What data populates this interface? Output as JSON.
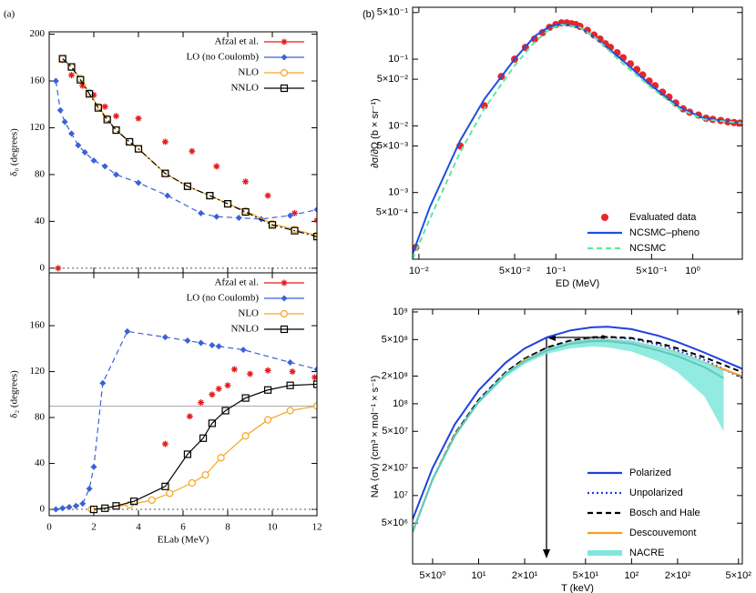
{
  "chart_data": [
    {
      "type": "line",
      "panel_label": "(a)",
      "ylabel": "δ₀ (degrees)",
      "xlim": [
        0,
        12
      ],
      "ylim": [
        -4,
        202
      ],
      "yticks": [
        0,
        40,
        80,
        120,
        160,
        200
      ],
      "legend": "upper right",
      "hlines": [
        {
          "value": 0,
          "style": "dotted",
          "color": "#555"
        }
      ],
      "series": [
        {
          "name": "Afzal et al.",
          "color": "#e41a1c",
          "marker": "star",
          "style": "none",
          "x": [
            0.4,
            0.6,
            1.0,
            1.5,
            2.0,
            2.5,
            3.0,
            4.0,
            5.2,
            6.4,
            7.5,
            8.8,
            9.8,
            11.0,
            12.0
          ],
          "values": [
            0,
            178,
            165,
            156,
            148,
            138,
            130,
            128,
            108,
            100,
            87,
            74,
            62,
            47,
            41
          ]
        },
        {
          "name": "LO (no Coulomb)",
          "color": "#3a62d8",
          "marker": "diamond",
          "style": "dashed",
          "x": [
            0.3,
            0.5,
            0.7,
            1.0,
            1.3,
            1.6,
            2.0,
            2.5,
            3.0,
            4.0,
            5.3,
            6.8,
            7.5,
            8.5,
            9.5,
            10.8,
            12.0
          ],
          "values": [
            160,
            135,
            125,
            115,
            105,
            99,
            92,
            87,
            80,
            73,
            62,
            47,
            44,
            43,
            42,
            45,
            50
          ]
        },
        {
          "name": "NLO",
          "color": "#f5a623",
          "marker": "circle",
          "style": "solid",
          "x": [
            0.6,
            1.0,
            1.4,
            1.8,
            2.2,
            2.6,
            3.0,
            3.6,
            4.0,
            5.2,
            6.2,
            7.2,
            8.0,
            8.8,
            10.0,
            11.0,
            12.0
          ],
          "values": [
            179,
            172,
            162,
            150,
            138,
            128,
            118,
            108,
            102,
            81,
            70,
            62,
            55,
            49,
            38,
            33,
            28
          ]
        },
        {
          "name": "NNLO",
          "color": "#000000",
          "marker": "square",
          "style": "dashdot",
          "x": [
            0.6,
            1.0,
            1.4,
            1.8,
            2.2,
            2.6,
            3.0,
            3.6,
            4.0,
            5.2,
            6.2,
            7.2,
            8.0,
            8.8,
            10.0,
            11.0,
            12.0
          ],
          "values": [
            179,
            172,
            161,
            149,
            137,
            127,
            118,
            108,
            102,
            81,
            70,
            62,
            55,
            48,
            37,
            32,
            27
          ]
        }
      ]
    },
    {
      "type": "line",
      "xlabel": "ELab (MeV)",
      "ylabel": "δ₂ (degrees)",
      "xlim": [
        0,
        12
      ],
      "ylim": [
        -5.5,
        206
      ],
      "xticks": [
        0,
        2,
        4,
        6,
        8,
        10,
        12
      ],
      "yticks": [
        0,
        40,
        80,
        120,
        160
      ],
      "legend": "upper right",
      "hlines": [
        {
          "value": 90,
          "style": "solid",
          "color": "#aaa"
        },
        {
          "value": 0,
          "style": "dotted",
          "color": "#555"
        }
      ],
      "series": [
        {
          "name": "Afzal et al.",
          "color": "#e41a1c",
          "marker": "star",
          "style": "none",
          "x": [
            5.2,
            6.3,
            6.8,
            7.3,
            7.6,
            8.0,
            8.3,
            9.0,
            9.8,
            10.9,
            11.9
          ],
          "values": [
            57,
            81,
            93,
            100,
            105,
            108,
            122,
            118,
            121,
            120,
            115
          ]
        },
        {
          "name": "LO (no Coulomb)",
          "color": "#3a62d8",
          "marker": "diamond",
          "style": "dashed",
          "x": [
            0.3,
            0.6,
            0.9,
            1.2,
            1.5,
            1.8,
            2.0,
            2.4,
            3.5,
            5.2,
            6.2,
            6.8,
            7.3,
            7.6,
            8.7,
            10.8,
            12.0
          ],
          "values": [
            0,
            1,
            2,
            3,
            5,
            18,
            37,
            110,
            155,
            150,
            147,
            145,
            143,
            142,
            139,
            128,
            122
          ]
        },
        {
          "name": "NLO",
          "color": "#f5a623",
          "marker": "circle",
          "style": "solid",
          "x": [
            1.9,
            3.6,
            4.6,
            5.4,
            6.4,
            7.0,
            7.7,
            8.8,
            9.8,
            10.8,
            12.0
          ],
          "values": [
            0,
            4,
            8,
            14,
            23,
            30,
            45,
            64,
            78,
            86,
            90
          ]
        },
        {
          "name": "NNLO",
          "color": "#000000",
          "marker": "square",
          "style": "solid",
          "x": [
            2.0,
            2.5,
            3.0,
            3.8,
            5.2,
            6.2,
            6.9,
            7.3,
            7.9,
            8.8,
            9.8,
            10.8,
            12.0
          ],
          "values": [
            0,
            1,
            3,
            7,
            20,
            48,
            62,
            75,
            86,
            97,
            104,
            108,
            109
          ]
        }
      ]
    },
    {
      "type": "line",
      "panel_label": "(b)",
      "xlabel": "ED (MeV)",
      "ylabel": "∂σ/∂Ω (b × sr⁻¹)",
      "xscale": "log",
      "yscale": "log",
      "xlim": [
        0.009,
        2.3
      ],
      "ylim": [
        0.0001,
        0.6
      ],
      "legend": "lower right",
      "xticks": [
        {
          "value": 0.01,
          "label": "10⁻²"
        },
        {
          "value": 0.05,
          "label": "5×10⁻²"
        },
        {
          "value": 0.1,
          "label": "10⁻¹"
        },
        {
          "value": 0.5,
          "label": "5×10⁻¹"
        },
        {
          "value": 1,
          "label": "10⁰"
        }
      ],
      "yticks": [
        {
          "value": 0.0005,
          "label": "5×10⁻⁴"
        },
        {
          "value": 0.001,
          "label": "10⁻³"
        },
        {
          "value": 0.005,
          "label": "5×10⁻³"
        },
        {
          "value": 0.01,
          "label": "10⁻²"
        },
        {
          "value": 0.05,
          "label": "5×10⁻²"
        },
        {
          "value": 0.1,
          "label": "10⁻¹"
        },
        {
          "value": 0.5,
          "label": "5×10⁻¹"
        }
      ],
      "series": [
        {
          "name": "Evaluated data",
          "color": "#e8262a",
          "marker": "dot",
          "style": "none",
          "x": [
            0.0095,
            0.02,
            0.03,
            0.04,
            0.05,
            0.06,
            0.07,
            0.08,
            0.09,
            0.1,
            0.11,
            0.12,
            0.13,
            0.14,
            0.15,
            0.17,
            0.19,
            0.21,
            0.23,
            0.25,
            0.28,
            0.31,
            0.35,
            0.39,
            0.43,
            0.48,
            0.53,
            0.6,
            0.67,
            0.75,
            0.85,
            0.95,
            1.1,
            1.25,
            1.4,
            1.6,
            1.8,
            2.0,
            2.2
          ],
          "values": [
            0.00015,
            0.005,
            0.02,
            0.055,
            0.1,
            0.15,
            0.2,
            0.25,
            0.3,
            0.33,
            0.35,
            0.35,
            0.34,
            0.33,
            0.31,
            0.27,
            0.23,
            0.2,
            0.17,
            0.15,
            0.125,
            0.105,
            0.085,
            0.07,
            0.058,
            0.047,
            0.04,
            0.032,
            0.027,
            0.022,
            0.018,
            0.016,
            0.0145,
            0.013,
            0.0125,
            0.012,
            0.0115,
            0.0112,
            0.011
          ]
        },
        {
          "name": "NCSMC–pheno",
          "color": "#1f4fe0",
          "marker": "none",
          "style": "solid",
          "x": [
            0.009,
            0.012,
            0.02,
            0.03,
            0.05,
            0.07,
            0.09,
            0.11,
            0.15,
            0.2,
            0.3,
            0.5,
            0.8,
            1.2,
            2.3
          ],
          "values": [
            0.00012,
            0.0006,
            0.006,
            0.025,
            0.1,
            0.22,
            0.31,
            0.34,
            0.3,
            0.2,
            0.1,
            0.04,
            0.019,
            0.013,
            0.011
          ]
        },
        {
          "name": "NCSMC",
          "color": "#5de8a0",
          "marker": "none",
          "style": "dashed",
          "x": [
            0.009,
            0.012,
            0.02,
            0.03,
            0.05,
            0.07,
            0.09,
            0.11,
            0.15,
            0.2,
            0.3,
            0.5,
            0.8,
            1.2,
            2.3
          ],
          "values": [
            0.0001,
            0.0004,
            0.004,
            0.018,
            0.08,
            0.18,
            0.28,
            0.33,
            0.3,
            0.2,
            0.09,
            0.037,
            0.018,
            0.0125,
            0.011
          ]
        }
      ]
    },
    {
      "type": "line",
      "xlabel": "T (keV)",
      "ylabel": "NA ⟨σv⟩ (cm³ × mol⁻¹ × s⁻¹)",
      "xscale": "log",
      "yscale": "log",
      "xlim": [
        3.7,
        530
      ],
      "ylim": [
        1800000,
        1070000000
      ],
      "legend": "lower right",
      "xticks": [
        {
          "value": 5,
          "label": "5×10⁰"
        },
        {
          "value": 10,
          "label": "10¹"
        },
        {
          "value": 20,
          "label": "2×10¹"
        },
        {
          "value": 50,
          "label": "5×10¹"
        },
        {
          "value": 100,
          "label": "10²"
        },
        {
          "value": 200,
          "label": "2×10²"
        },
        {
          "value": 500,
          "label": "5×10²"
        }
      ],
      "yticks": [
        {
          "value": 5000000,
          "label": "5×10⁶"
        },
        {
          "value": 10000000,
          "label": "10⁷"
        },
        {
          "value": 20000000,
          "label": "2×10⁷"
        },
        {
          "value": 50000000,
          "label": "5×10⁷"
        },
        {
          "value": 100000000,
          "label": "10⁸"
        },
        {
          "value": 200000000,
          "label": "2×10⁸"
        },
        {
          "value": 500000000,
          "label": "5×10⁸"
        },
        {
          "value": 1000000000,
          "label": "10⁹"
        }
      ],
      "series": [
        {
          "name": "Polarized",
          "color": "#2040e0",
          "marker": "none",
          "style": "solid",
          "x": [
            3.7,
            5,
            7,
            10,
            15,
            20,
            28,
            40,
            55,
            70,
            100,
            150,
            200,
            300,
            530
          ],
          "values": [
            5500000,
            20000000,
            60000000,
            140000000,
            280000000,
            400000000,
            530000000,
            630000000,
            680000000,
            690000000,
            650000000,
            550000000,
            470000000,
            360000000,
            240000000
          ]
        },
        {
          "name": "Unpolarized",
          "color": "#2040e0",
          "marker": "none",
          "style": "dotted",
          "x": [
            3.7,
            5,
            7,
            10,
            15,
            20,
            28,
            40,
            55,
            70,
            100,
            150,
            200,
            300,
            530
          ],
          "values": [
            4000000,
            15000000,
            47000000,
            110000000,
            220000000,
            310000000,
            410000000,
            480000000,
            520000000,
            530000000,
            510000000,
            440000000,
            380000000,
            300000000,
            190000000
          ]
        },
        {
          "name": "Bosch and Hale",
          "color": "#000000",
          "marker": "none",
          "style": "dashed",
          "x": [
            3.7,
            5,
            7,
            10,
            15,
            20,
            28,
            40,
            55,
            70,
            100,
            150,
            200,
            300,
            530
          ],
          "values": [
            4000000,
            15000000,
            47000000,
            110000000,
            220000000,
            310000000,
            410000000,
            490000000,
            530000000,
            535000000,
            520000000,
            460000000,
            400000000,
            320000000,
            220000000
          ]
        },
        {
          "name": "Descouvemont",
          "color": "#f0a020",
          "marker": "none",
          "style": "solid",
          "x": [
            3.7,
            5,
            7,
            10,
            15,
            20,
            28,
            40,
            55,
            70,
            100,
            150,
            200,
            300,
            530
          ],
          "values": [
            4000000,
            15000000,
            46000000,
            105000000,
            210000000,
            300000000,
            390000000,
            460000000,
            500000000,
            500000000,
            470000000,
            410000000,
            360000000,
            280000000,
            200000000
          ]
        },
        {
          "name": "NACRE",
          "color": "#7fe8dc",
          "marker": "none",
          "style": "band",
          "x": [
            3.7,
            5,
            7,
            10,
            15,
            20,
            28,
            40,
            55,
            70,
            100,
            150,
            200,
            300,
            400
          ],
          "values": [
            4000000,
            15000000,
            45000000,
            105000000,
            210000000,
            290000000,
            380000000,
            450000000,
            480000000,
            480000000,
            450000000,
            380000000,
            330000000,
            250000000,
            190000000
          ],
          "lower": [
            3800000,
            14000000,
            43000000,
            100000000,
            195000000,
            270000000,
            350000000,
            400000000,
            420000000,
            410000000,
            370000000,
            290000000,
            220000000,
            120000000,
            50000000
          ],
          "upper": [
            4200000,
            16000000,
            47000000,
            110000000,
            220000000,
            300000000,
            400000000,
            480000000,
            510000000,
            510000000,
            490000000,
            420000000,
            370000000,
            290000000,
            230000000
          ]
        }
      ]
    }
  ]
}
